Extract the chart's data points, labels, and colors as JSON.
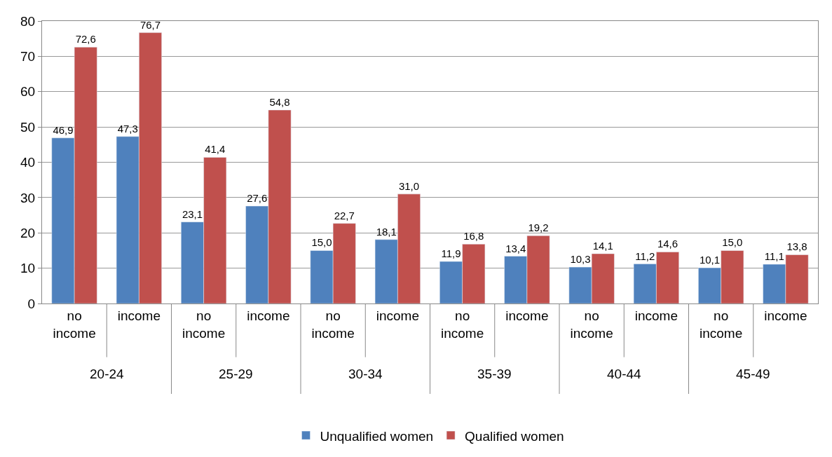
{
  "chart_data": {
    "type": "bar",
    "categories": [
      "no income",
      "income",
      "no income",
      "income",
      "no income",
      "income",
      "no income",
      "income",
      "no income",
      "income",
      "no income",
      "income"
    ],
    "annotations": [
      "20-24",
      "25-29",
      "30-34",
      "35-39",
      "40-44",
      "45-49"
    ],
    "series": [
      {
        "name": "Unqualified women",
        "color": "#4f81bd",
        "values": [
          46.9,
          47.3,
          23.1,
          27.6,
          15.0,
          18.1,
          11.9,
          13.4,
          10.3,
          11.2,
          10.1,
          11.1
        ],
        "value_labels": [
          "46,9",
          "47,3",
          "23,1",
          "27,6",
          "15,0",
          "18,1",
          "11,9",
          "13,4",
          "10,3",
          "11,2",
          "10,1",
          "11,1"
        ]
      },
      {
        "name": "Qualified women",
        "color": "#c0504d",
        "values": [
          72.6,
          76.7,
          41.4,
          54.8,
          22.7,
          31.0,
          16.8,
          19.2,
          14.1,
          14.6,
          15.0,
          13.8
        ],
        "value_labels": [
          "72,6",
          "76,7",
          "41,4",
          "54,8",
          "22,7",
          "31,0",
          "16,8",
          "19,2",
          "14,1",
          "14,6",
          "15,0",
          "13,8"
        ]
      }
    ],
    "ylim": [
      0,
      80
    ],
    "yticks": [
      0,
      10,
      20,
      30,
      40,
      50,
      60,
      70,
      80
    ],
    "grid": "y",
    "legend": "bottom"
  }
}
